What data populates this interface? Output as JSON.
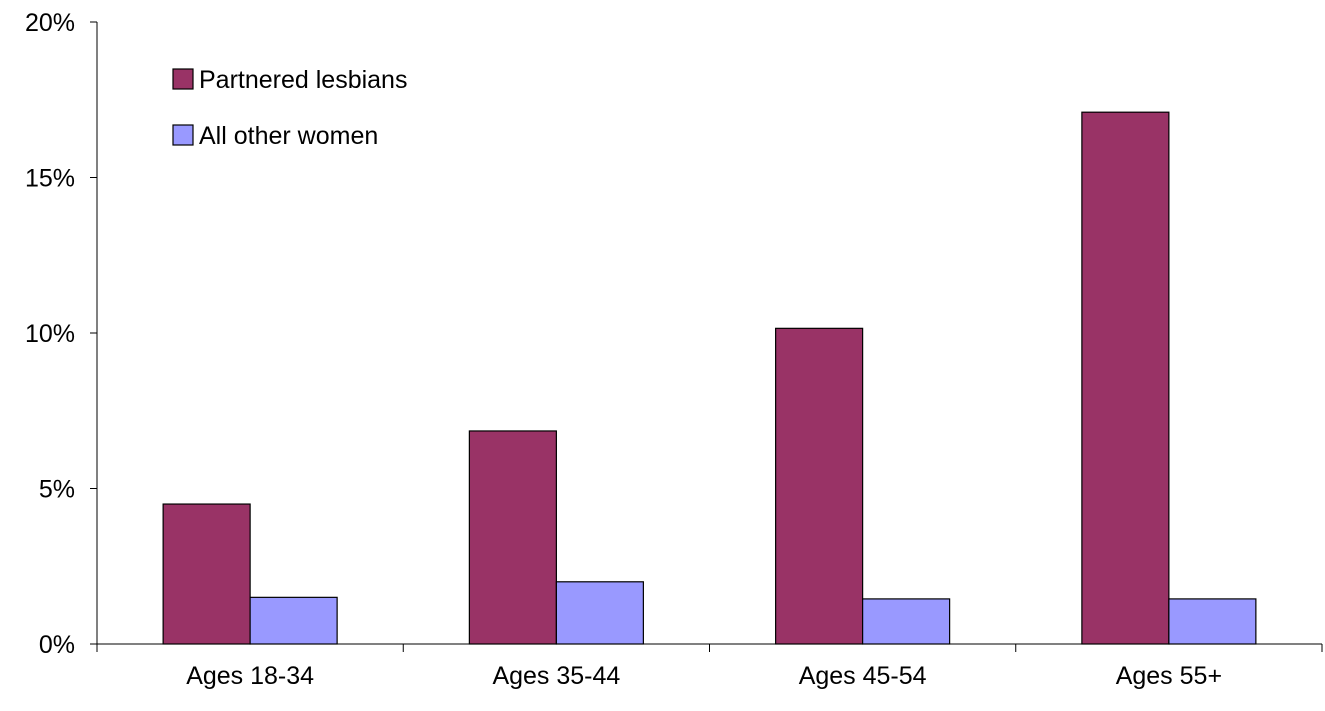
{
  "chart_data": {
    "type": "bar",
    "categories": [
      "Ages 18-34",
      "Ages 35-44",
      "Ages 45-54",
      "Ages 55+"
    ],
    "series": [
      {
        "name": "Partnered lesbians",
        "values": [
          4.5,
          6.85,
          10.15,
          17.1
        ],
        "color": "#993366"
      },
      {
        "name": "All other women",
        "values": [
          1.5,
          2.0,
          1.45,
          1.45
        ],
        "color": "#9999ff"
      }
    ],
    "y_ticks": [
      0,
      5,
      10,
      15,
      20
    ],
    "y_tick_labels": [
      "0%",
      "5%",
      "10%",
      "15%",
      "20%"
    ],
    "ylim": [
      0,
      20
    ],
    "legend_position": "top-left",
    "grid": false,
    "title": "",
    "xlabel": "",
    "ylabel": ""
  }
}
